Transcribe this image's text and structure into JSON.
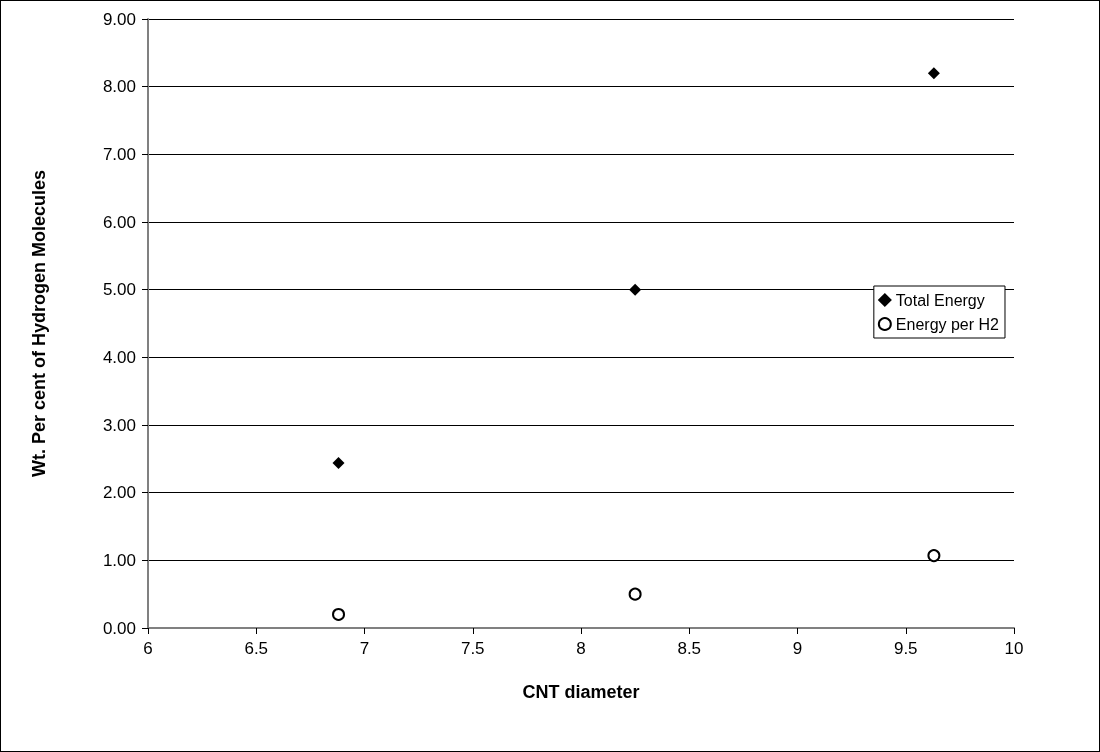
{
  "chart_data": {
    "type": "scatter",
    "xlabel": "CNT diameter",
    "ylabel": "Wt. Per cent of Hydrogen Molecules",
    "xlim": [
      6,
      10
    ],
    "xticks": [
      6,
      6.5,
      7,
      7.5,
      8,
      8.5,
      9,
      9.5,
      10
    ],
    "ylim": [
      0,
      9
    ],
    "yticks": [
      {
        "value": 0,
        "label": "0.00"
      },
      {
        "value": 1,
        "label": "1.00"
      },
      {
        "value": 2,
        "label": "2.00"
      },
      {
        "value": 3,
        "label": "3.00"
      },
      {
        "value": 4,
        "label": "4.00"
      },
      {
        "value": 5,
        "label": "5.00"
      },
      {
        "value": 6,
        "label": "6.00"
      },
      {
        "value": 7,
        "label": "7.00"
      },
      {
        "value": 8,
        "label": "8.00"
      },
      {
        "value": 9,
        "label": "9.00"
      }
    ],
    "grid": "y",
    "legend": "right",
    "series": [
      {
        "name": "Total Energy",
        "color": "#000000",
        "marker": "diamond",
        "x": [
          6.88,
          8.25,
          9.63
        ],
        "values": [
          2.44,
          5.0,
          8.2
        ]
      },
      {
        "name": "Energy per H2",
        "color": "#000000",
        "marker": "circle",
        "x": [
          6.88,
          8.25,
          9.63
        ],
        "values": [
          0.2,
          0.5,
          1.07
        ]
      }
    ]
  }
}
